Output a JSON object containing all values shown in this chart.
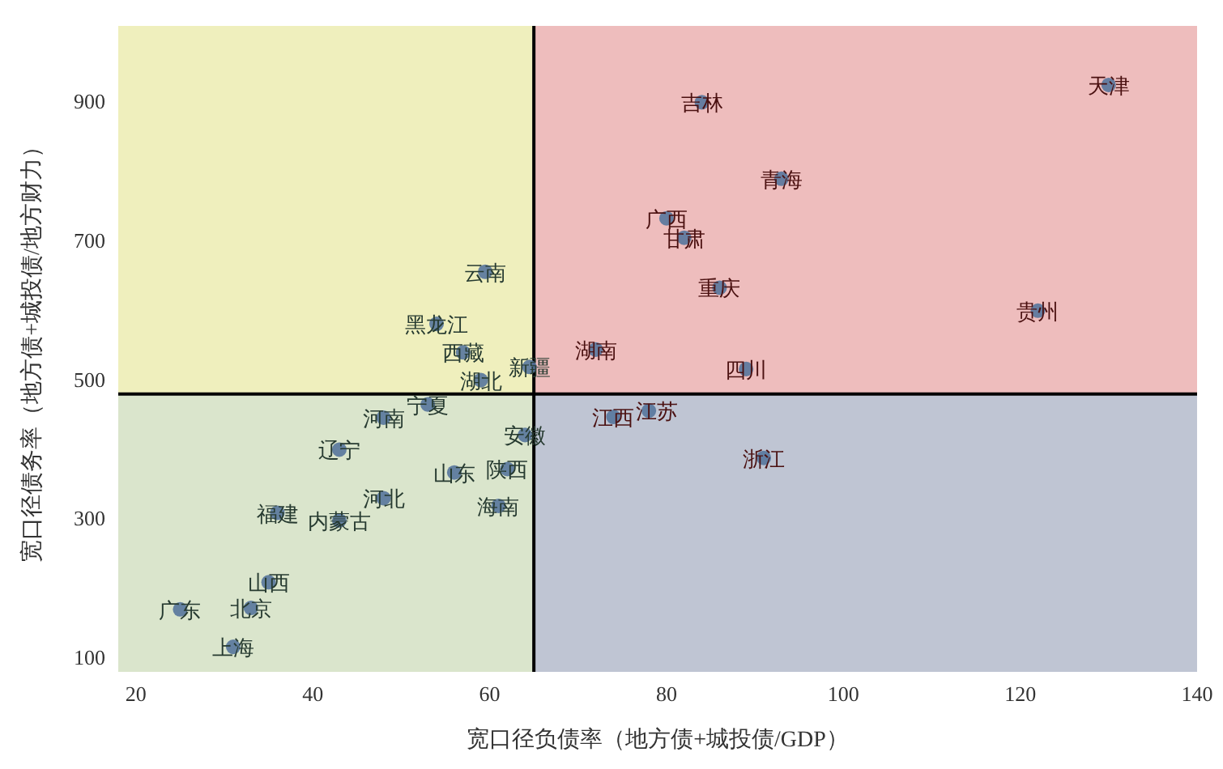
{
  "chart_data": {
    "type": "scatter",
    "xlabel": "宽口径负债率（地方债+城投债/GDP）",
    "ylabel": "宽口径债务率（地方债+城投债/地方财力）",
    "xlim": [
      18,
      140
    ],
    "xticks": [
      20,
      40,
      60,
      80,
      100,
      120,
      140
    ],
    "ylim": [
      80,
      1010
    ],
    "yticks": [
      100,
      300,
      500,
      700,
      900
    ],
    "grid": false,
    "marker": "circle",
    "ref_lines": [
      {
        "axis": "x",
        "value": 65,
        "color": "#000000"
      },
      {
        "axis": "y",
        "value": 480,
        "color": "#000000"
      }
    ],
    "series": [
      {
        "color": "#56759c",
        "x": [
          130,
          84,
          93,
          80,
          82,
          86,
          122,
          72,
          89,
          64.5,
          59.5,
          54,
          57,
          59,
          53,
          48,
          64,
          43,
          56,
          62,
          48,
          61,
          36,
          43,
          35,
          33,
          25,
          31,
          74,
          78,
          91
        ],
        "values": [
          925,
          900,
          790,
          733,
          705,
          633,
          600,
          544,
          516,
          519,
          656,
          581,
          540,
          500,
          465,
          446,
          421,
          400,
          367,
          372,
          330,
          319,
          309,
          298,
          209,
          172,
          170,
          116,
          447,
          456,
          388
        ],
        "value_labels": [
          "天津",
          "吉林",
          "青海",
          "广西",
          "甘肃",
          "重庆",
          "贵州",
          "湖南",
          "四川",
          "新疆",
          "云南",
          "黑龙江",
          "西藏",
          "湖北",
          "宁夏",
          "河南",
          "安徽",
          "辽宁",
          "山东",
          "陕西",
          "河北",
          "海南",
          "福建",
          "内蒙古",
          "山西",
          "北京",
          "广东",
          "上海",
          "江西",
          "江苏",
          "浙江"
        ]
      }
    ]
  }
}
